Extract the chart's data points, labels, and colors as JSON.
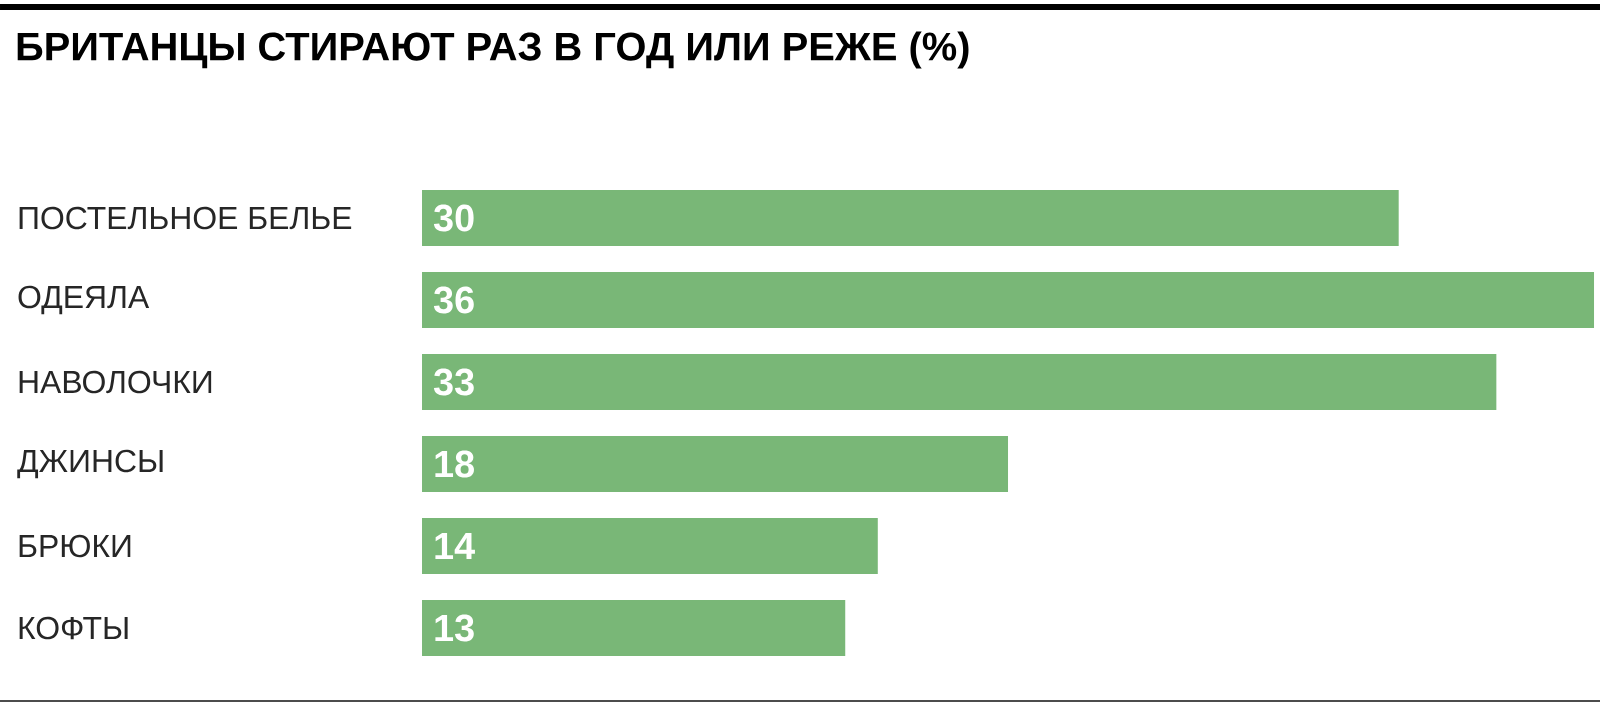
{
  "chart_data": {
    "type": "bar",
    "orientation": "horizontal",
    "title": "БРИТАНЦЫ СТИРАЮТ РАЗ В ГОД ИЛИ РЕЖЕ (%)",
    "categories": [
      "ПОСТЕЛЬНОЕ БЕЛЬЕ",
      "ОДЕЯЛА",
      "НАВОЛОЧКИ",
      "ДЖИНСЫ",
      "БРЮКИ",
      "КОФТЫ"
    ],
    "values": [
      30,
      36,
      33,
      18,
      14,
      13
    ],
    "color": "#79b777",
    "data_labels": true
  }
}
